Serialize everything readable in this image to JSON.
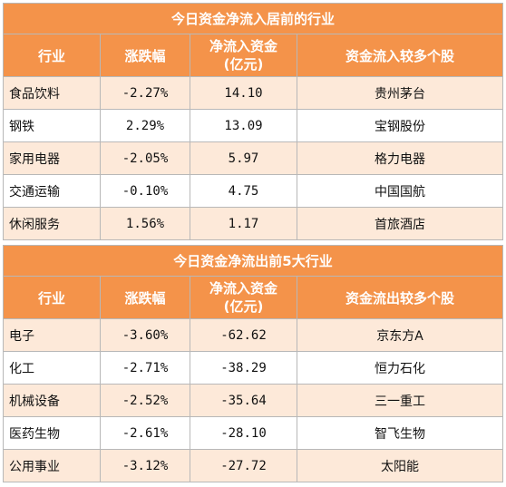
{
  "inflow": {
    "title": "今日资金净流入居前的行业",
    "headers": [
      "行业",
      "涨跌幅",
      "净流入资金",
      "(亿元)",
      "资金流入较多个股"
    ],
    "rows": [
      {
        "industry": "食品饮料",
        "change": "-2.27%",
        "net": "14.10",
        "stock": "贵州茅台"
      },
      {
        "industry": "钢铁",
        "change": "2.29%",
        "net": "13.09",
        "stock": "宝钢股份"
      },
      {
        "industry": "家用电器",
        "change": "-2.05%",
        "net": "5.97",
        "stock": "格力电器"
      },
      {
        "industry": "交通运输",
        "change": "-0.10%",
        "net": "4.75",
        "stock": "中国国航"
      },
      {
        "industry": "休闲服务",
        "change": "1.56%",
        "net": "1.17",
        "stock": "首旅酒店"
      }
    ]
  },
  "outflow": {
    "title": "今日资金净流出前5大行业",
    "headers": [
      "行业",
      "涨跌幅",
      "净流入资金",
      "(亿元)",
      "资金流出较多个股"
    ],
    "rows": [
      {
        "industry": "电子",
        "change": "-3.60%",
        "net": "-62.62",
        "stock": "京东方A"
      },
      {
        "industry": "化工",
        "change": "-2.71%",
        "net": "-38.29",
        "stock": "恒力石化"
      },
      {
        "industry": "机械设备",
        "change": "-2.52%",
        "net": "-35.64",
        "stock": "三一重工"
      },
      {
        "industry": "医药生物",
        "change": "-2.61%",
        "net": "-28.10",
        "stock": "智飞生物"
      },
      {
        "industry": "公用事业",
        "change": "-3.12%",
        "net": "-27.72",
        "stock": "太阳能"
      }
    ]
  }
}
